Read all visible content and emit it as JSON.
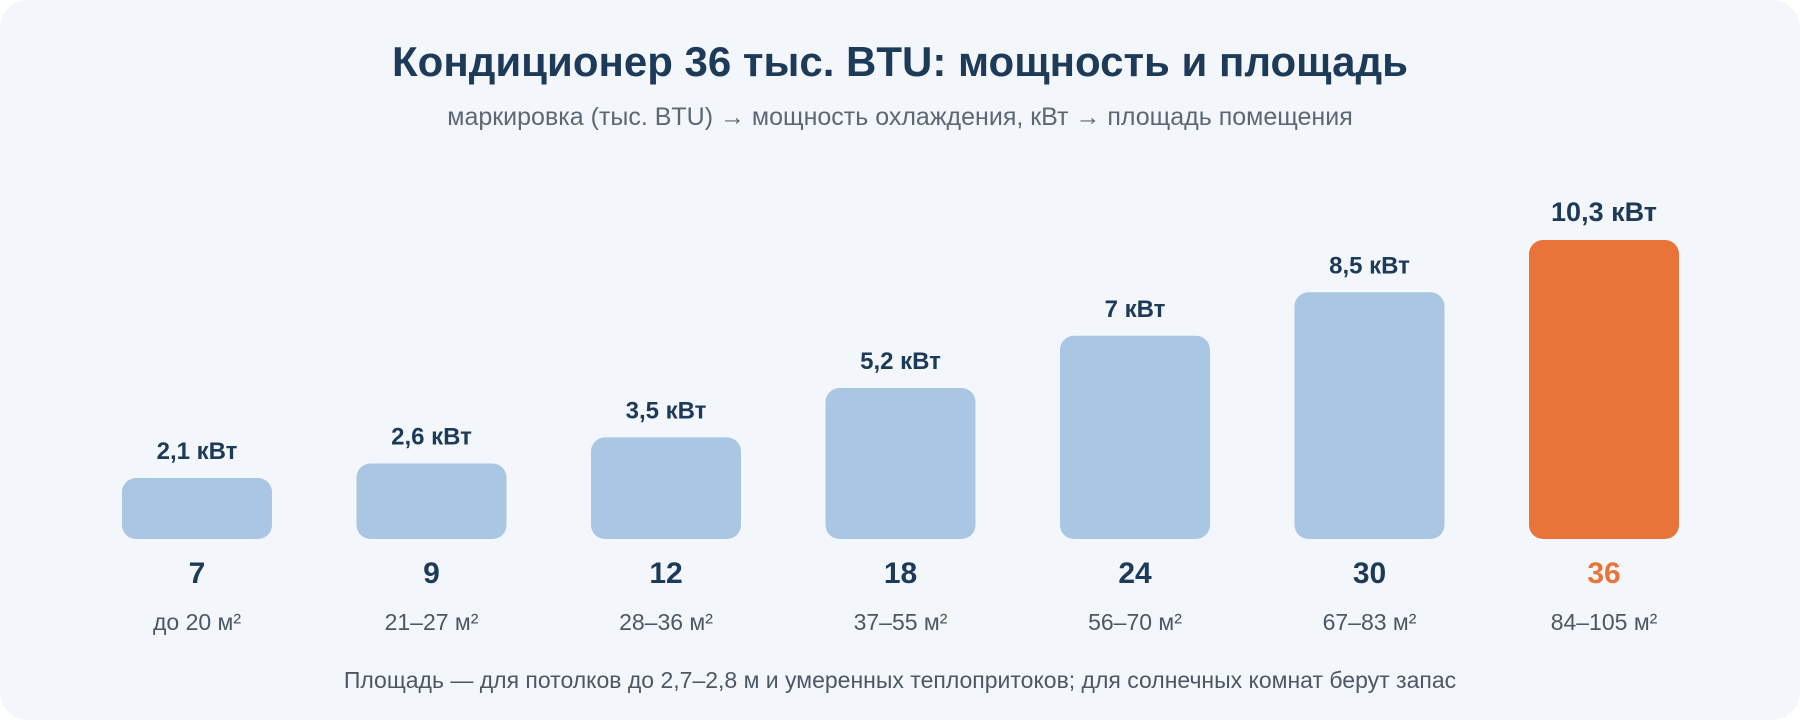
{
  "title": "Кондиционер 36 тыс. BTU: мощность и площадь",
  "subtitle": "маркировка (тыс. BTU) → мощность охлаждения, кВт → площадь помещения",
  "footnote": "Площадь — для потолков до 2,7–2,8 м и умеренных теплопритоков; для солнечных комнат берут запас",
  "colors": {
    "bar": "#a9c6e3",
    "highlight": "#e8743a",
    "text_dark": "#1d3a58",
    "text_muted": "#4d5763"
  },
  "chart_data": {
    "type": "bar",
    "categories": [
      "7",
      "9",
      "12",
      "18",
      "24",
      "30",
      "36"
    ],
    "values": [
      2.1,
      2.6,
      3.5,
      5.2,
      7,
      8.5,
      10.3
    ],
    "value_labels": [
      "2,1 кВт",
      "2,6 кВт",
      "3,5 кВт",
      "5,2 кВт",
      "7 кВт",
      "8,5 кВт",
      "10,3 кВт"
    ],
    "area_labels": [
      "до 20 м²",
      "21–27 м²",
      "28–36 м²",
      "37–55 м²",
      "56–70 м²",
      "67–83 м²",
      "84–105 м²"
    ],
    "highlight_category": "36",
    "ylim": [
      0,
      10.3
    ],
    "grid": false,
    "xlabel": "",
    "ylabel": ""
  }
}
